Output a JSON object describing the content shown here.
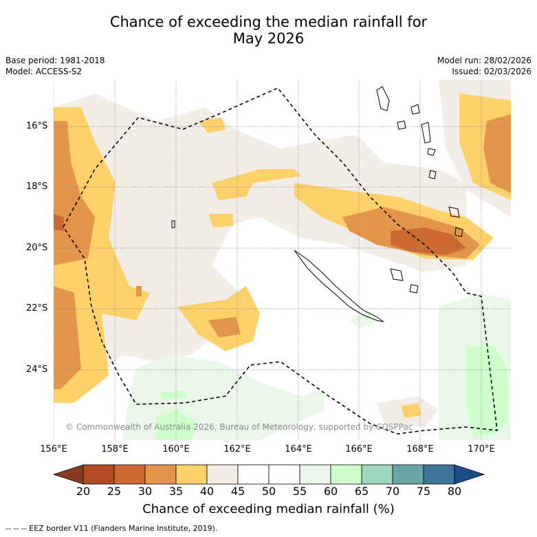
{
  "title_line1": "Chance of exceeding the median rainfall for",
  "title_line2": "May 2026",
  "base_period": "Base period: 1981-2018",
  "model": "Model: ACCESS-S2",
  "model_run": "Model run: 28/02/2026",
  "issued": "Issued: 02/03/2026",
  "lat_labels": [
    "16°S",
    "18°S",
    "20°S",
    "22°S",
    "24°S"
  ],
  "lon_labels": [
    "156°E",
    "158°E",
    "160°E",
    "162°E",
    "164°E",
    "166°E",
    "168°E",
    "170°E"
  ],
  "colorbar": {
    "ticks": [
      "20",
      "25",
      "30",
      "35",
      "40",
      "45",
      "50",
      "55",
      "60",
      "65",
      "70",
      "75",
      "80"
    ],
    "colors": [
      "#8b3a1f",
      "#b34a22",
      "#cd6a33",
      "#e3964a",
      "#fdd06a",
      "#f2ede6",
      "#ffffff",
      "#ffffff",
      "#e9f7e9",
      "#ccffcc",
      "#9fd4bd",
      "#6aa6a6",
      "#3d7598",
      "#1c4d84"
    ],
    "label": "Chance of exceeding median rainfall (%)"
  },
  "copyright": "© Commonwealth of Australia 2026, Bureau of Meteorology, supported by COSPPac",
  "eez_legend": "--  --  -- EEZ border V11 (Flanders Marine Institute, 2019)."
}
